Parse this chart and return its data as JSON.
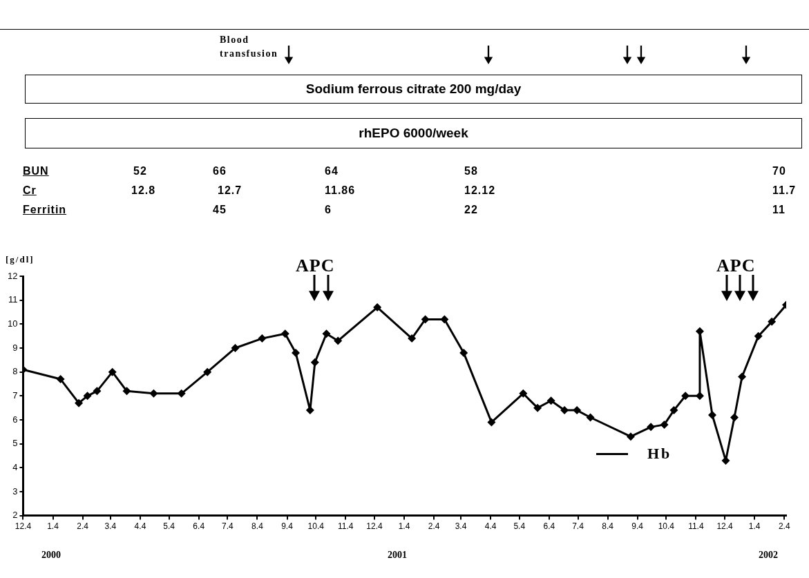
{
  "chart_data": {
    "type": "line",
    "ylabel": "[g/dl]",
    "annotations": [
      "Blood transfusion",
      "Sodium ferrous citrate 200 mg/day",
      "rhEPO 6000/week",
      "BUN",
      "52",
      "66",
      "64",
      "58",
      "70",
      "Cr",
      "12.8",
      "12.7",
      "11.86",
      "12.12",
      "11.7",
      "Ferritin",
      "45",
      "6",
      "22",
      "11",
      "APC",
      "APC",
      "2000",
      "2001",
      "2002"
    ],
    "x": [
      "1999-12-04",
      "2000-01-12",
      "2000-01-31",
      "2000-02-09",
      "2000-02-19",
      "2000-03-06",
      "2000-03-21",
      "2000-04-18",
      "2000-05-17",
      "2000-06-13",
      "2000-07-12",
      "2000-08-09",
      "2000-09-02",
      "2000-09-13",
      "2000-09-28",
      "2000-10-03",
      "2000-10-15",
      "2000-10-27",
      "2000-12-07",
      "2001-01-12",
      "2001-01-26",
      "2001-02-15",
      "2001-03-07",
      "2001-04-05",
      "2001-05-08",
      "2001-05-23",
      "2001-06-06",
      "2001-06-20",
      "2001-07-03",
      "2001-07-17",
      "2001-08-28",
      "2001-09-18",
      "2001-10-02",
      "2001-10-12",
      "2001-10-24",
      "2001-11-08",
      "2001-11-08",
      "2001-11-21",
      "2001-12-05",
      "2001-12-14",
      "2001-12-22",
      "2002-01-08",
      "2002-01-22",
      "2002-02-06"
    ],
    "series": [
      {
        "name": "Hb",
        "color": "#000000",
        "values": [
          8.1,
          7.7,
          6.7,
          7.0,
          7.2,
          8.0,
          7.2,
          7.1,
          7.1,
          8.0,
          9.0,
          9.4,
          9.6,
          8.8,
          6.4,
          8.4,
          9.6,
          9.3,
          10.7,
          9.4,
          10.2,
          10.2,
          8.8,
          5.9,
          7.1,
          6.5,
          6.8,
          6.4,
          6.4,
          6.1,
          5.3,
          5.7,
          5.8,
          6.4,
          7.0,
          7.0,
          9.7,
          6.2,
          4.3,
          6.1,
          7.8,
          9.5,
          10.1,
          10.8
        ]
      }
    ],
    "xlim": [
      "1999-12-04",
      "2002-02-06"
    ],
    "xticks": [
      {
        "value": "1999-12-04",
        "label": "12.4"
      },
      {
        "value": "2000-01-04",
        "label": "1.4"
      },
      {
        "value": "2000-02-04",
        "label": "2.4"
      },
      {
        "value": "2000-03-04",
        "label": "3.4"
      },
      {
        "value": "2000-04-04",
        "label": "4.4"
      },
      {
        "value": "2000-05-04",
        "label": "5.4"
      },
      {
        "value": "2000-06-04",
        "label": "6.4"
      },
      {
        "value": "2000-07-04",
        "label": "7.4"
      },
      {
        "value": "2000-08-04",
        "label": "8.4"
      },
      {
        "value": "2000-09-04",
        "label": "9.4"
      },
      {
        "value": "2000-10-04",
        "label": "10.4"
      },
      {
        "value": "2000-11-04",
        "label": "11.4"
      },
      {
        "value": "2000-12-04",
        "label": "12.4"
      },
      {
        "value": "2001-01-04",
        "label": "1.4"
      },
      {
        "value": "2001-02-04",
        "label": "2.4"
      },
      {
        "value": "2001-03-04",
        "label": "3.4"
      },
      {
        "value": "2001-04-04",
        "label": "4.4"
      },
      {
        "value": "2001-05-04",
        "label": "5.4"
      },
      {
        "value": "2001-06-04",
        "label": "6.4"
      },
      {
        "value": "2001-07-04",
        "label": "7.4"
      },
      {
        "value": "2001-08-04",
        "label": "8.4"
      },
      {
        "value": "2001-09-04",
        "label": "9.4"
      },
      {
        "value": "2001-10-04",
        "label": "10.4"
      },
      {
        "value": "2001-11-04",
        "label": "11.4"
      },
      {
        "value": "2001-12-04",
        "label": "12.4"
      },
      {
        "value": "2002-01-04",
        "label": "1.4"
      },
      {
        "value": "2002-02-04",
        "label": "2.4"
      }
    ],
    "ylim": [
      2,
      12
    ],
    "yticks": [
      2,
      3,
      4,
      5,
      6,
      7,
      8,
      9,
      10,
      11,
      12
    ],
    "grid": false,
    "legend": "bottom right",
    "marker": "diamond",
    "line_style": "solid"
  }
}
